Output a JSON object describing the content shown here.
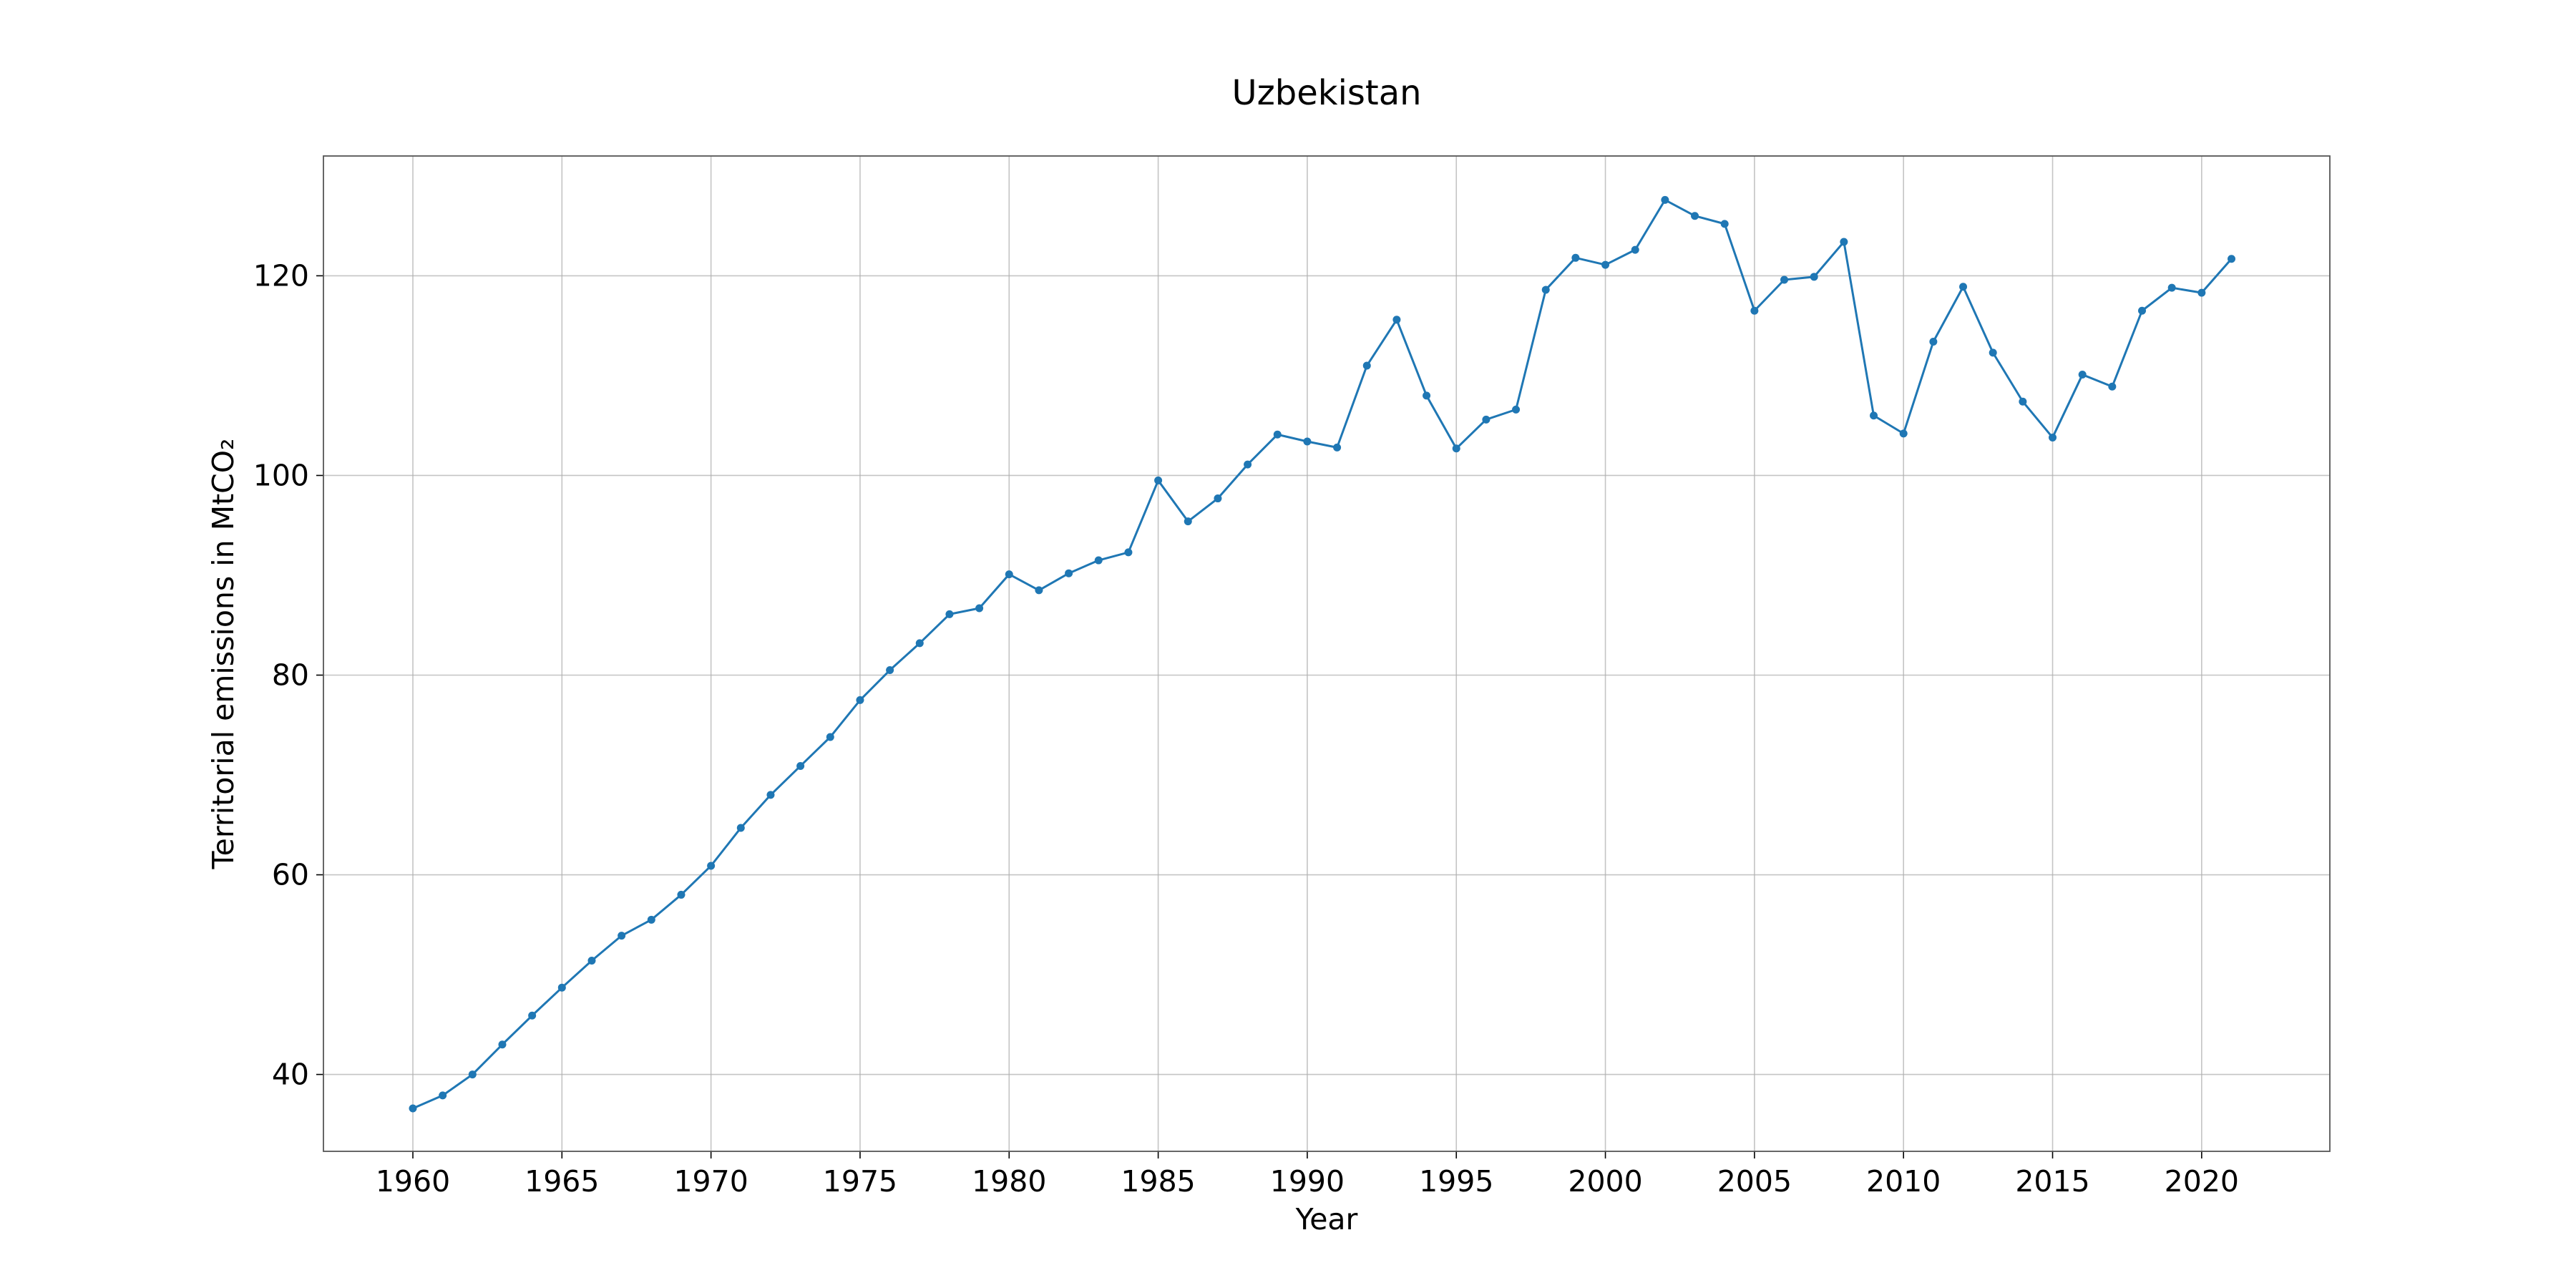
{
  "chart_data": {
    "type": "line",
    "title": "Uzbekistan",
    "xlabel": "Year",
    "ylabel": "Territorial emissions in MtCO₂",
    "xlim": [
      1957,
      2024.3
    ],
    "ylim": [
      32.3,
      132
    ],
    "x_ticks": [
      1960,
      1965,
      1970,
      1975,
      1980,
      1985,
      1990,
      1995,
      2000,
      2005,
      2010,
      2015,
      2020
    ],
    "y_ticks": [
      40,
      60,
      80,
      100,
      120
    ],
    "grid": true,
    "legend": "none",
    "series": [
      {
        "color": "#1f77b4",
        "marker": "circle",
        "x": [
          1960,
          1961,
          1962,
          1963,
          1964,
          1965,
          1966,
          1967,
          1968,
          1969,
          1970,
          1971,
          1972,
          1973,
          1974,
          1975,
          1976,
          1977,
          1978,
          1979,
          1980,
          1981,
          1982,
          1983,
          1984,
          1985,
          1986,
          1987,
          1988,
          1989,
          1990,
          1991,
          1992,
          1993,
          1994,
          1995,
          1996,
          1997,
          1998,
          1999,
          2000,
          2001,
          2002,
          2003,
          2004,
          2005,
          2006,
          2007,
          2008,
          2009,
          2010,
          2011,
          2012,
          2013,
          2014,
          2015,
          2016,
          2017,
          2018,
          2019,
          2020,
          2021
        ],
        "y": [
          36.6,
          37.9,
          40.0,
          43.0,
          45.9,
          48.7,
          51.4,
          53.9,
          55.5,
          58.0,
          60.9,
          64.7,
          68.0,
          70.9,
          73.8,
          77.5,
          80.5,
          83.2,
          86.1,
          86.7,
          90.1,
          88.5,
          90.2,
          91.5,
          92.3,
          99.5,
          95.4,
          97.7,
          101.1,
          104.1,
          103.4,
          102.8,
          111.0,
          115.6,
          108.0,
          102.7,
          105.6,
          106.6,
          118.6,
          121.8,
          121.1,
          122.6,
          127.6,
          126.0,
          125.2,
          116.5,
          119.6,
          119.9,
          123.4,
          106.0,
          104.2,
          113.4,
          118.9,
          112.3,
          107.4,
          103.8,
          110.1,
          108.9,
          116.5,
          118.8,
          118.3,
          121.7
        ]
      }
    ]
  }
}
